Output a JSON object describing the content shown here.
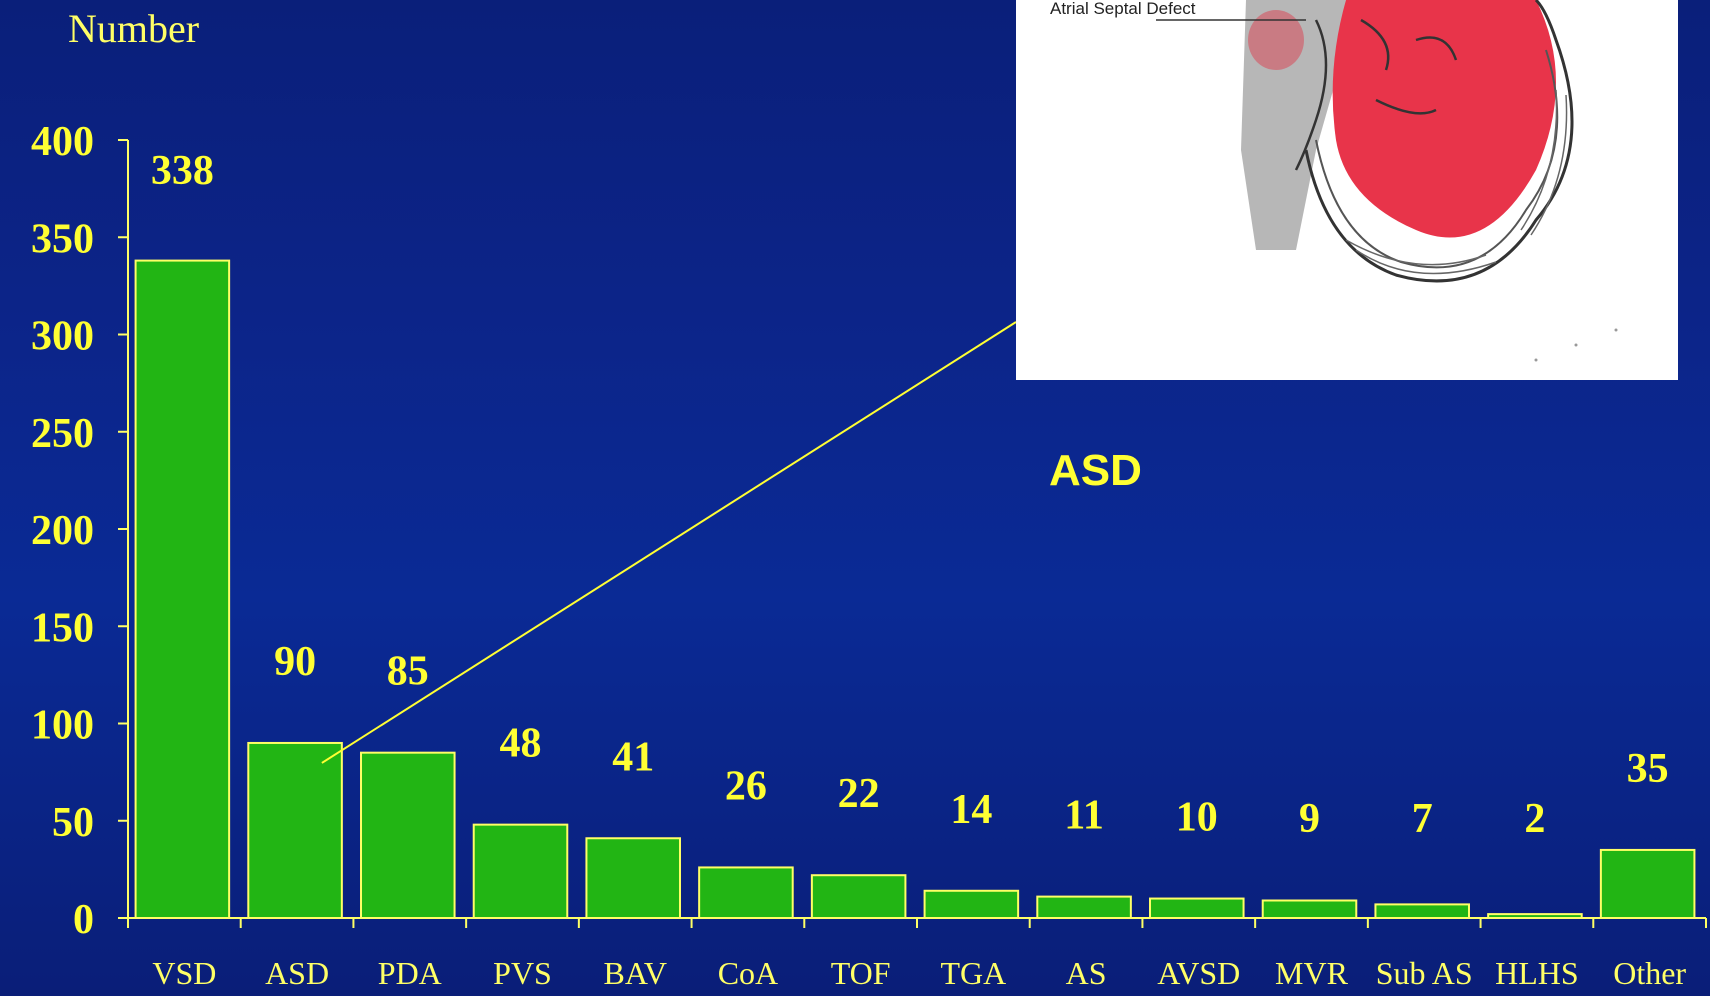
{
  "chart_data": {
    "type": "bar",
    "ylabel": "Number",
    "xlabel": "",
    "ylim": [
      0,
      400
    ],
    "yticks": [
      "0",
      "50",
      "100",
      "150",
      "200",
      "250",
      "300",
      "350",
      "400"
    ],
    "categories": [
      "VSD",
      "ASD",
      "PDA",
      "PVS",
      "BAV",
      "CoA",
      "TOF",
      "TGA",
      "AS",
      "AVSD",
      "MVR",
      "Sub AS",
      "HLHS",
      "Other"
    ],
    "values": [
      338,
      90,
      85,
      48,
      41,
      26,
      22,
      14,
      11,
      10,
      9,
      7,
      2,
      35
    ],
    "data_labels": [
      "338",
      "90",
      "85",
      "48",
      "41",
      "26",
      "22",
      "14",
      "11",
      "10",
      "9",
      "7",
      "2",
      "35"
    ],
    "grid": false,
    "bar_color": "#22b514",
    "bar_edge_color": "#ffff66",
    "text_color": "#ffff33"
  },
  "inset": {
    "caption": "ASD",
    "diagram_label": "Atrial Septal Defect",
    "callout_category": "ASD"
  }
}
